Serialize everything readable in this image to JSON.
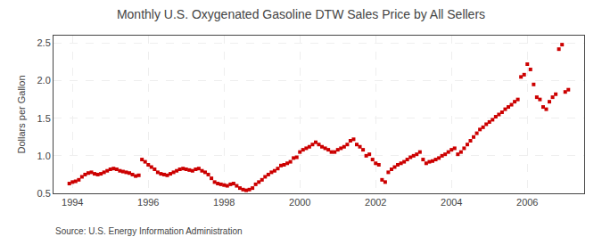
{
  "chart_data": {
    "type": "scatter",
    "title": "Monthly U.S. Oxygenated Gasoline DTW Sales Price by All Sellers",
    "ylabel": "Dollars per Gallon",
    "annotations": [
      "Source: U.S. Energy Information Administration"
    ],
    "color": "#cc0000",
    "marker": "square",
    "grid": true,
    "xlim": [
      1993.5,
      2007.5
    ],
    "xticks": [
      1994,
      1996,
      1998,
      2000,
      2002,
      2004,
      2006
    ],
    "ylim": [
      0.5,
      2.6
    ],
    "yticks": [
      0.5,
      {
        "value": 1.0,
        "label": "1.0"
      },
      1.5,
      {
        "value": 2.0,
        "label": "2.0"
      },
      2.5
    ],
    "x": [
      1993.917,
      1994.0,
      1994.083,
      1994.167,
      1994.25,
      1994.333,
      1994.417,
      1994.5,
      1994.583,
      1994.667,
      1994.75,
      1994.833,
      1994.917,
      1995.0,
      1995.083,
      1995.167,
      1995.25,
      1995.333,
      1995.417,
      1995.5,
      1995.583,
      1995.667,
      1995.75,
      1995.833,
      1995.917,
      1996.0,
      1996.083,
      1996.167,
      1996.25,
      1996.333,
      1996.417,
      1996.5,
      1996.583,
      1996.667,
      1996.75,
      1996.833,
      1996.917,
      1997.0,
      1997.083,
      1997.167,
      1997.25,
      1997.333,
      1997.417,
      1997.5,
      1997.583,
      1997.667,
      1997.75,
      1997.833,
      1997.917,
      1998.0,
      1998.083,
      1998.167,
      1998.25,
      1998.333,
      1998.417,
      1998.5,
      1998.583,
      1998.667,
      1998.75,
      1998.833,
      1998.917,
      1999.0,
      1999.083,
      1999.167,
      1999.25,
      1999.333,
      1999.417,
      1999.5,
      1999.583,
      1999.667,
      1999.75,
      1999.833,
      1999.917,
      2000.0,
      2000.083,
      2000.167,
      2000.25,
      2000.333,
      2000.417,
      2000.5,
      2000.583,
      2000.667,
      2000.75,
      2000.833,
      2000.917,
      2001.0,
      2001.083,
      2001.167,
      2001.25,
      2001.333,
      2001.417,
      2001.5,
      2001.583,
      2001.667,
      2001.75,
      2001.833,
      2001.917,
      2002.0,
      2002.083,
      2002.167,
      2002.25,
      2002.333,
      2002.417,
      2002.5,
      2002.583,
      2002.667,
      2002.75,
      2002.833,
      2002.917,
      2003.0,
      2003.083,
      2003.167,
      2003.25,
      2003.333,
      2003.417,
      2003.5,
      2003.583,
      2003.667,
      2003.75,
      2003.833,
      2003.917,
      2004.0,
      2004.083,
      2004.167,
      2004.25,
      2004.333,
      2004.417,
      2004.5,
      2004.583,
      2004.667,
      2004.75,
      2004.833,
      2004.917,
      2005.0,
      2005.083,
      2005.167,
      2005.25,
      2005.333,
      2005.417,
      2005.5,
      2005.583,
      2005.667,
      2005.75,
      2005.833,
      2005.917,
      2006.0,
      2006.083,
      2006.167,
      2006.25,
      2006.333,
      2006.417,
      2006.5,
      2006.583,
      2006.667,
      2006.75,
      2006.833,
      2006.917,
      2007.0,
      2007.083
    ],
    "values": [
      0.63,
      0.65,
      0.66,
      0.68,
      0.72,
      0.75,
      0.77,
      0.78,
      0.76,
      0.75,
      0.76,
      0.78,
      0.8,
      0.82,
      0.83,
      0.82,
      0.8,
      0.79,
      0.78,
      0.77,
      0.75,
      0.73,
      0.74,
      0.95,
      0.92,
      0.88,
      0.85,
      0.82,
      0.78,
      0.76,
      0.75,
      0.74,
      0.76,
      0.78,
      0.8,
      0.82,
      0.83,
      0.82,
      0.81,
      0.8,
      0.82,
      0.83,
      0.8,
      0.78,
      0.75,
      0.7,
      0.65,
      0.63,
      0.62,
      0.61,
      0.6,
      0.62,
      0.63,
      0.6,
      0.57,
      0.55,
      0.54,
      0.55,
      0.57,
      0.62,
      0.65,
      0.68,
      0.72,
      0.75,
      0.78,
      0.8,
      0.83,
      0.87,
      0.88,
      0.9,
      0.92,
      0.97,
      0.98,
      1.05,
      1.08,
      1.1,
      1.12,
      1.15,
      1.18,
      1.15,
      1.12,
      1.1,
      1.08,
      1.05,
      1.05,
      1.08,
      1.1,
      1.12,
      1.15,
      1.2,
      1.22,
      1.15,
      1.12,
      1.08,
      1.0,
      1.02,
      0.95,
      0.9,
      0.88,
      0.68,
      0.65,
      0.78,
      0.82,
      0.85,
      0.88,
      0.9,
      0.92,
      0.95,
      0.98,
      1.0,
      1.02,
      1.05,
      0.95,
      0.9,
      0.92,
      0.93,
      0.95,
      0.97,
      1.0,
      1.02,
      1.05,
      1.08,
      1.1,
      1.02,
      1.05,
      1.1,
      1.15,
      1.2,
      1.25,
      1.3,
      1.35,
      1.38,
      1.42,
      1.45,
      1.48,
      1.52,
      1.55,
      1.58,
      1.62,
      1.65,
      1.68,
      1.72,
      1.75,
      2.05,
      2.08,
      2.22,
      2.15,
      1.95,
      1.78,
      1.75,
      1.65,
      1.62,
      1.72,
      1.78,
      1.82,
      2.42,
      2.48,
      1.85,
      1.88
    ]
  }
}
